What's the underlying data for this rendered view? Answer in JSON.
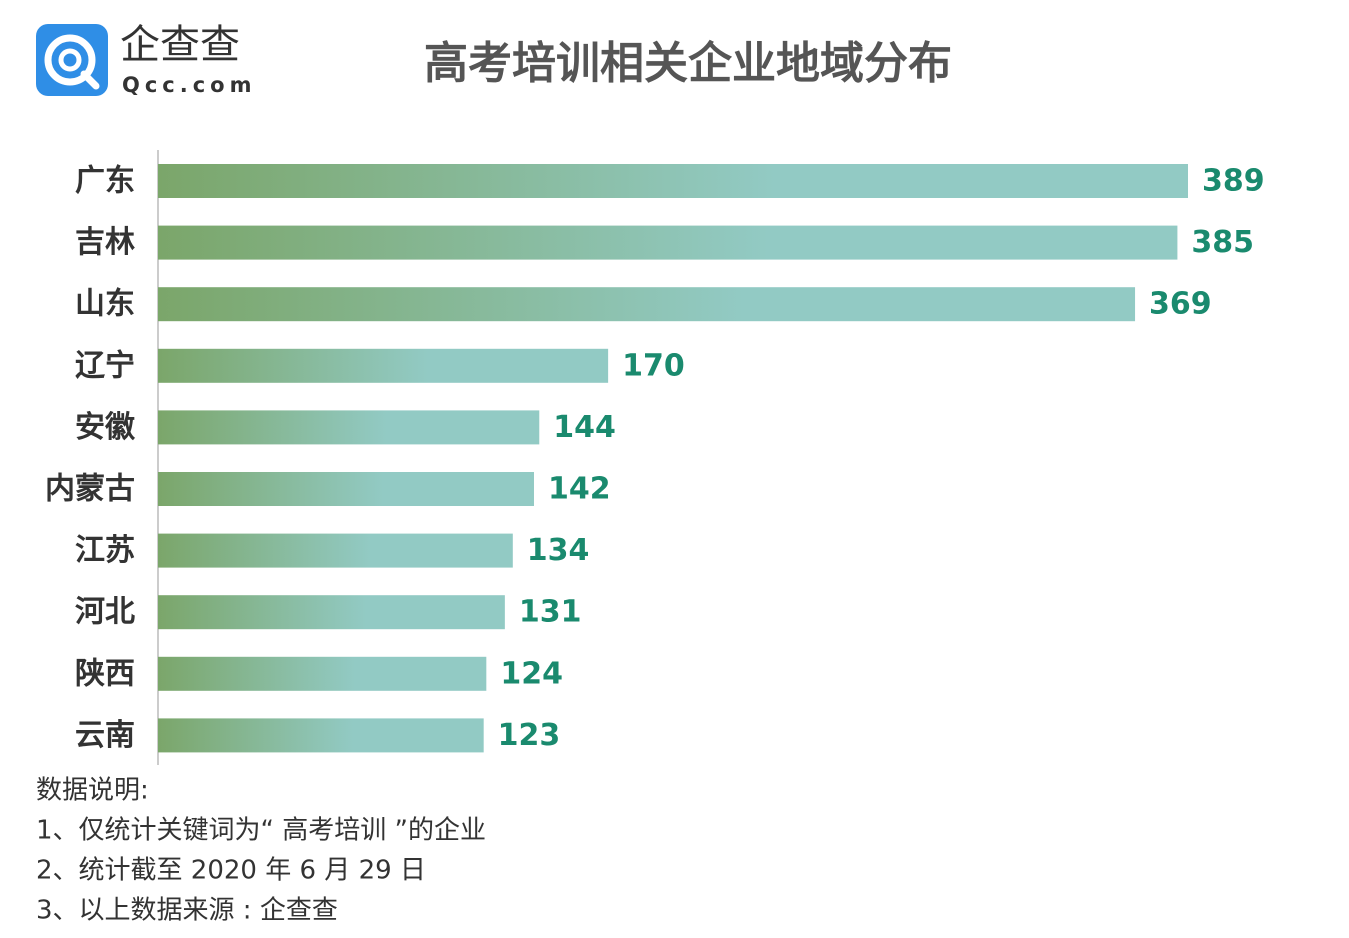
{
  "logo": {
    "name": "企查查",
    "site": "Qcc.com"
  },
  "chart_data": {
    "type": "hbar",
    "title": "高考培训相关企业地域分布",
    "categories": [
      "广东",
      "吉林",
      "山东",
      "辽宁",
      "安徽",
      "内蒙古",
      "江苏",
      "河北",
      "陕西",
      "云南"
    ],
    "values": [
      389,
      385,
      369,
      170,
      144,
      142,
      134,
      131,
      124,
      123
    ],
    "gradient": [
      "#7ba66a",
      "#92cac4"
    ],
    "label_color": "#1a8a6e"
  },
  "notes": {
    "heading": "数据说明:",
    "lines": [
      "1、仅统计关键词为“ 高考培训 ”的企业",
      "2、统计截至 2020 年 6 月 29 日",
      "3、以上数据来源 : 企查查"
    ]
  }
}
